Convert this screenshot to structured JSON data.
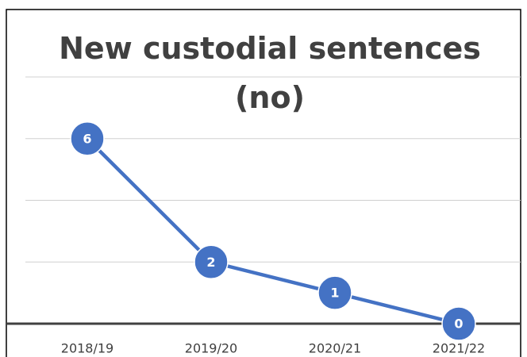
{
  "chart_data": {
    "type": "line",
    "title": "New custodial sentences (no)",
    "categories": [
      "2018/19",
      "2019/20",
      "2020/21",
      "2021/22"
    ],
    "values": [
      6,
      2,
      1,
      0
    ],
    "color": "#4472c4",
    "ylim": [
      0,
      8
    ],
    "yticks": [
      0,
      2,
      4,
      6,
      8
    ],
    "grid": true
  }
}
